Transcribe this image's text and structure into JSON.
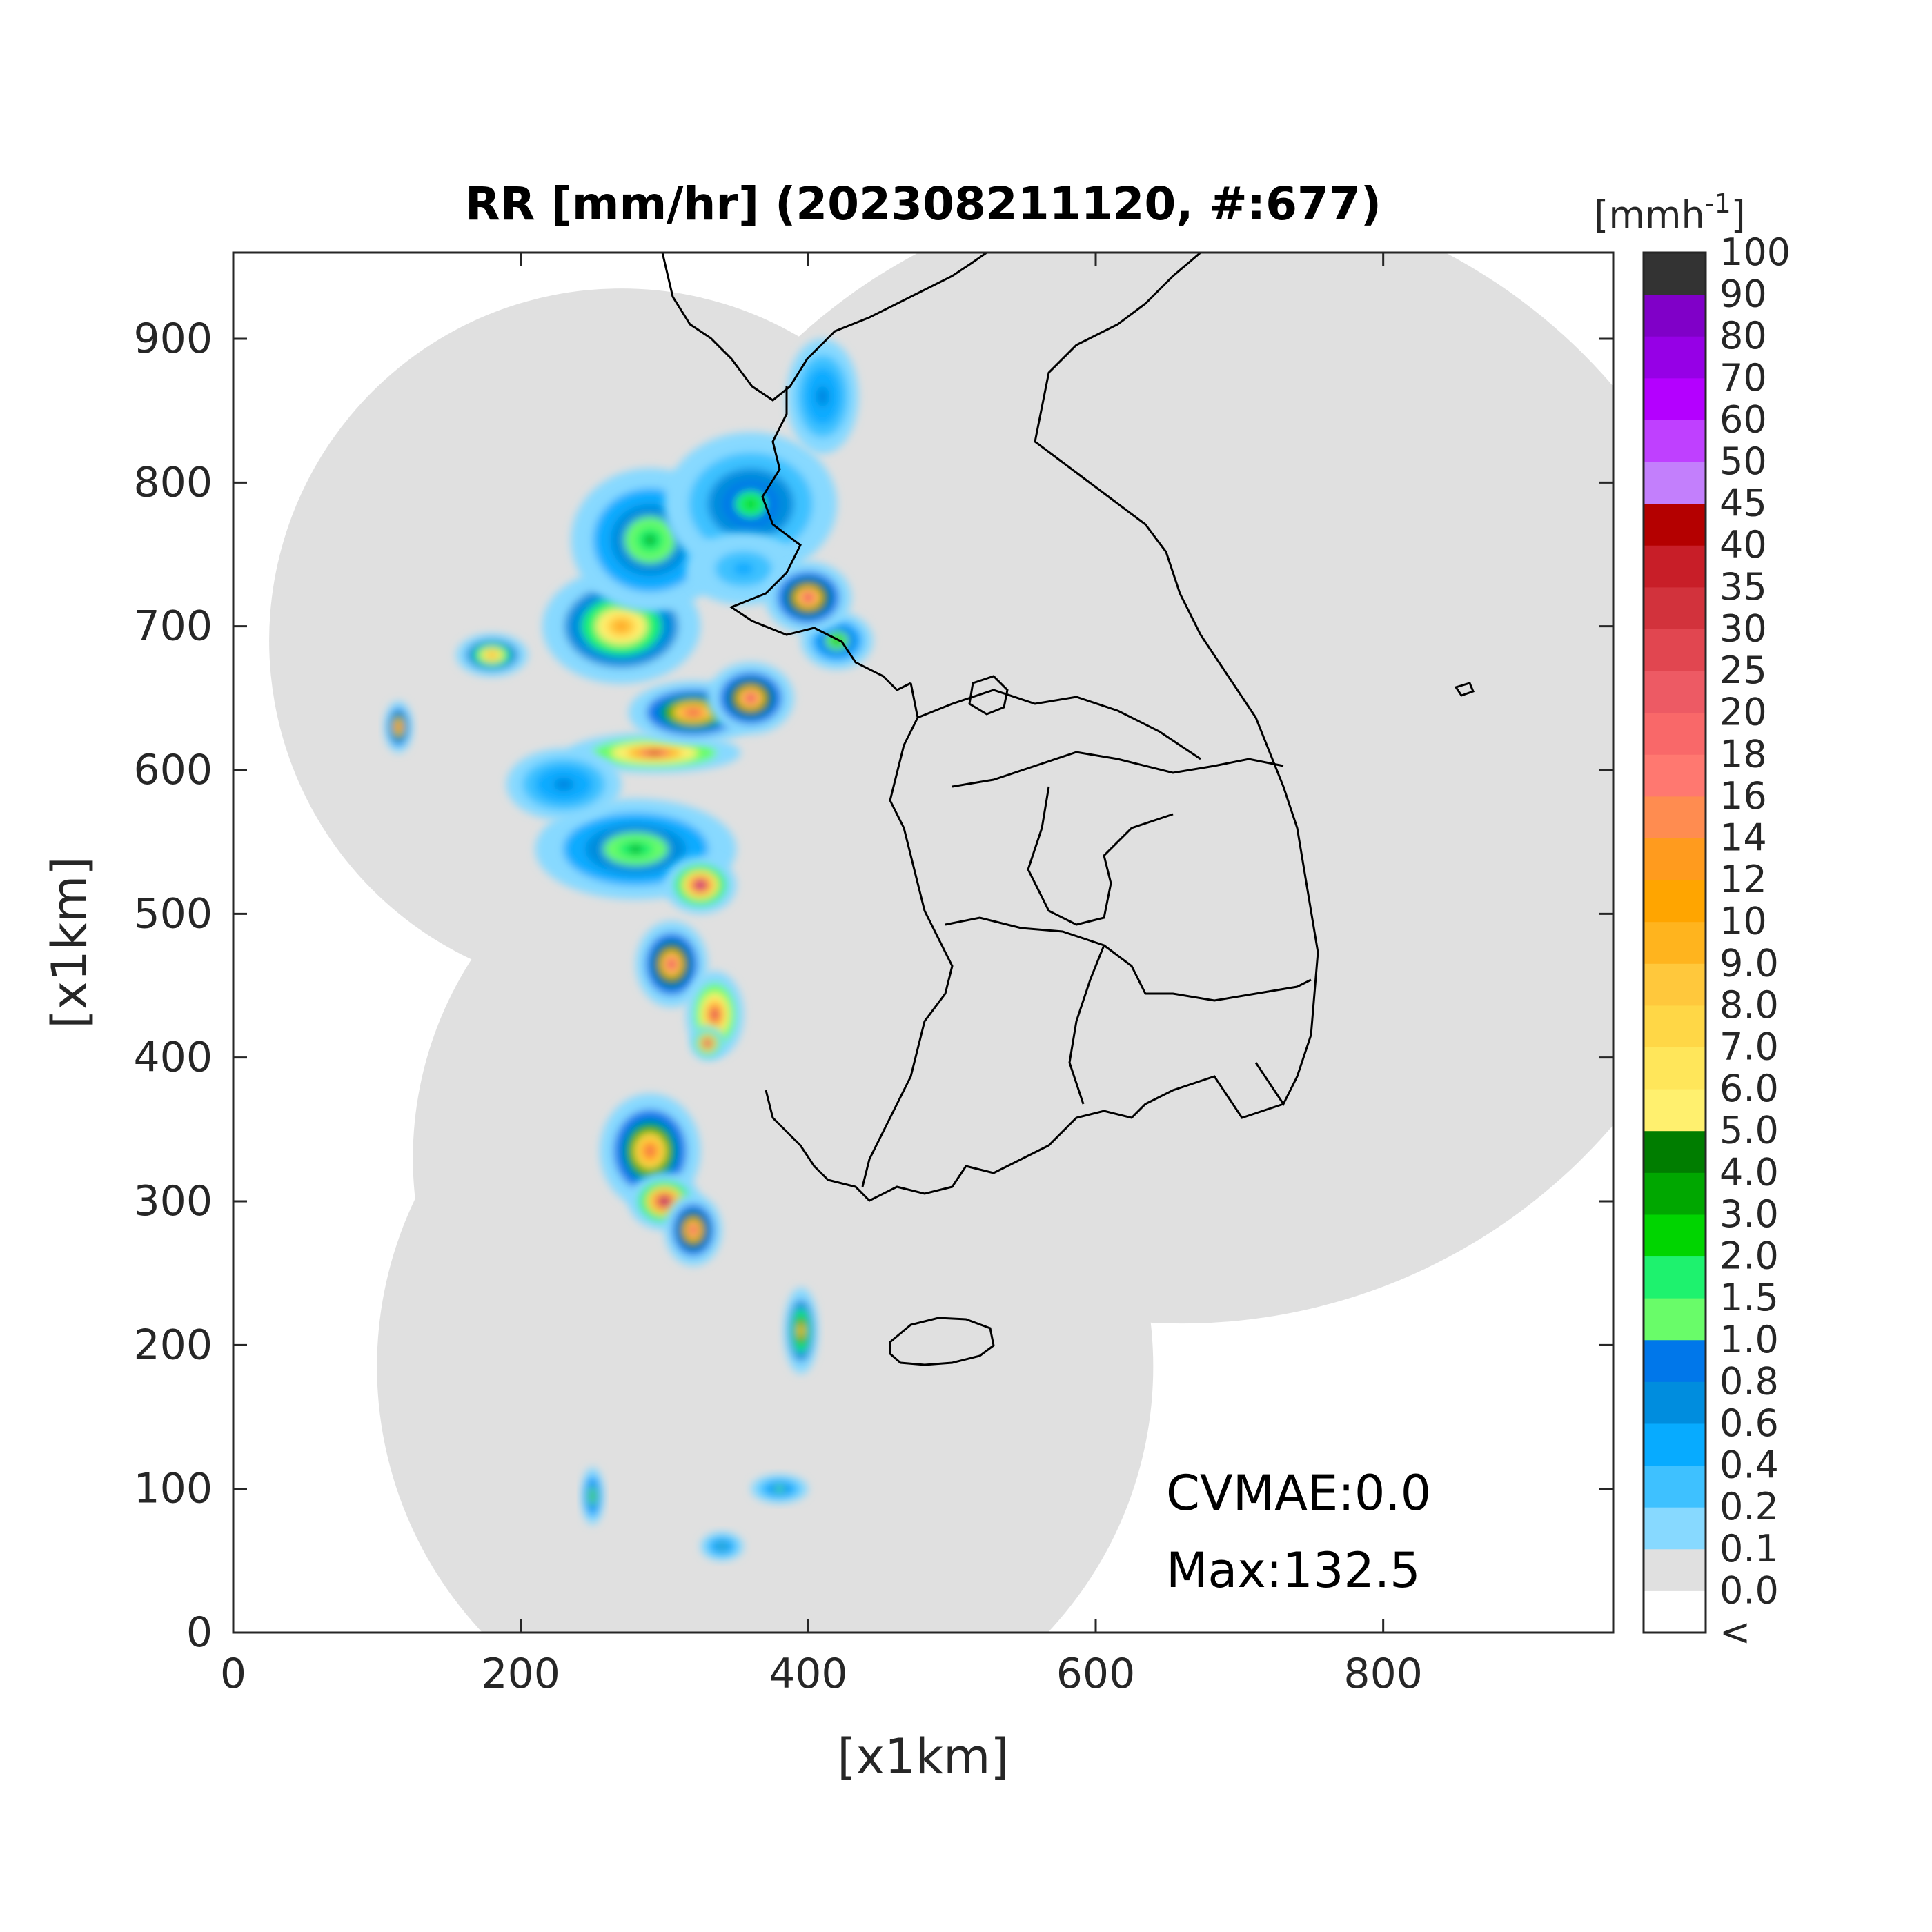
{
  "title": "RR [mm/hr] (202308211120, #:677)",
  "xlabel": "[x1km]",
  "ylabel": "[x1km]",
  "x_ticks": [
    "0",
    "200",
    "400",
    "600",
    "800"
  ],
  "y_ticks": [
    "0",
    "100",
    "200",
    "300",
    "400",
    "500",
    "600",
    "700",
    "800",
    "900"
  ],
  "axis_range": {
    "x": [
      0,
      960
    ],
    "y": [
      0,
      960
    ]
  },
  "colorbar": {
    "unit_base": "[mmh",
    "unit_exp": "-1",
    "unit_close": "]",
    "labels": [
      "<",
      "0.0",
      "0.1",
      "0.2",
      "0.4",
      "0.6",
      "0.8",
      "1.0",
      "1.5",
      "2.0",
      "3.0",
      "4.0",
      "5.0",
      "6.0",
      "7.0",
      "8.0",
      "9.0",
      "10",
      "12",
      "14",
      "16",
      "18",
      "20",
      "25",
      "30",
      "35",
      "40",
      "45",
      "50",
      "60",
      "70",
      "80",
      "90",
      "100"
    ],
    "colors": [
      "#ffffff",
      "#e0e0e0",
      "#87d9ff",
      "#3ec1ff",
      "#07abff",
      "#008dde",
      "#0077ea",
      "#69fc69",
      "#1ef26e",
      "#00d500",
      "#00a700",
      "#007d00",
      "#fff06e",
      "#ffe65a",
      "#ffd746",
      "#ffc83c",
      "#ffb41e",
      "#ffa500",
      "#ff9b1e",
      "#ff8c50",
      "#ff7870",
      "#f96869",
      "#ed5a64",
      "#e14650",
      "#d2323c",
      "#c81e28",
      "#b40000",
      "#c37ffc",
      "#bf40ff",
      "#b400ff",
      "#9600e6",
      "#8000c8",
      "#333333"
    ]
  },
  "annotations": {
    "cvmae": "CVMAE:0.0",
    "max": "Max:132.5"
  },
  "chart_data": {
    "type": "heatmap",
    "title": "RR [mm/hr] (202308211120, #:677)",
    "xlabel": "[x1km]",
    "ylabel": "[x1km]",
    "xlim": [
      0,
      960
    ],
    "ylim": [
      0,
      960
    ],
    "coverage_disks": [
      {
        "cx": 270,
        "cy": 690,
        "r": 245
      },
      {
        "cx": 380,
        "cy": 330,
        "r": 255
      },
      {
        "cx": 370,
        "cy": 185,
        "r": 270
      },
      {
        "cx": 660,
        "cy": 610,
        "r": 395
      }
    ],
    "rain_cells": [
      {
        "x": 293,
        "y": 612,
        "rx": 60,
        "ry": 14,
        "level": 26
      },
      {
        "x": 320,
        "y": 640,
        "rx": 45,
        "ry": 22,
        "level": 23
      },
      {
        "x": 360,
        "y": 650,
        "rx": 30,
        "ry": 25,
        "level": 24
      },
      {
        "x": 270,
        "y": 700,
        "rx": 55,
        "ry": 40,
        "level": 18
      },
      {
        "x": 290,
        "y": 760,
        "rx": 55,
        "ry": 50,
        "level": 10
      },
      {
        "x": 360,
        "y": 785,
        "rx": 60,
        "ry": 50,
        "level": 9
      },
      {
        "x": 280,
        "y": 545,
        "rx": 70,
        "ry": 35,
        "level": 10
      },
      {
        "x": 325,
        "y": 520,
        "rx": 25,
        "ry": 20,
        "level": 30
      },
      {
        "x": 305,
        "y": 465,
        "rx": 25,
        "ry": 30,
        "level": 24
      },
      {
        "x": 335,
        "y": 430,
        "rx": 20,
        "ry": 30,
        "level": 26
      },
      {
        "x": 290,
        "y": 335,
        "rx": 35,
        "ry": 40,
        "level": 22
      },
      {
        "x": 300,
        "y": 300,
        "rx": 25,
        "ry": 20,
        "level": 31
      },
      {
        "x": 320,
        "y": 280,
        "rx": 20,
        "ry": 25,
        "level": 24
      },
      {
        "x": 330,
        "y": 410,
        "rx": 12,
        "ry": 12,
        "level": 31
      },
      {
        "x": 395,
        "y": 210,
        "rx": 12,
        "ry": 30,
        "level": 17
      },
      {
        "x": 180,
        "y": 680,
        "rx": 25,
        "ry": 15,
        "level": 18
      },
      {
        "x": 115,
        "y": 630,
        "rx": 10,
        "ry": 18,
        "level": 23
      },
      {
        "x": 250,
        "y": 95,
        "rx": 8,
        "ry": 20,
        "level": 11
      },
      {
        "x": 355,
        "y": 740,
        "rx": 40,
        "ry": 25,
        "level": 4
      },
      {
        "x": 230,
        "y": 590,
        "rx": 40,
        "ry": 25,
        "level": 6
      },
      {
        "x": 420,
        "y": 690,
        "rx": 25,
        "ry": 20,
        "level": 11
      },
      {
        "x": 400,
        "y": 720,
        "rx": 30,
        "ry": 25,
        "level": 24
      },
      {
        "x": 410,
        "y": 860,
        "rx": 25,
        "ry": 40,
        "level": 6
      },
      {
        "x": 380,
        "y": 100,
        "rx": 20,
        "ry": 10,
        "level": 8
      },
      {
        "x": 340,
        "y": 60,
        "rx": 15,
        "ry": 10,
        "level": 7
      }
    ]
  }
}
